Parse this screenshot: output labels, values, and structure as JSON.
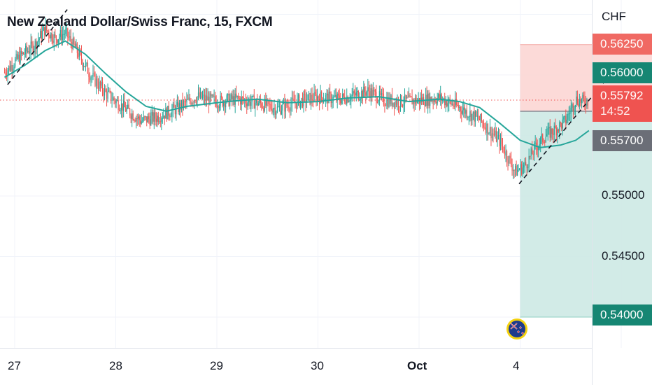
{
  "title": "New Zealand Dollar/Swiss Franc, 15, FXCM",
  "currency": "CHF",
  "colors": {
    "up": "#26a69a",
    "down": "#ef5350",
    "ma": "#26a69a",
    "stop_zone": "#fcd3d1",
    "target_zone": "#cde9e4",
    "last_price": "#ef5350",
    "entry_price": "#6b6e77",
    "target_price": "#1c8c7d"
  },
  "price_labels": {
    "stop": "0.56250",
    "current": "0.55792",
    "countdown": "14:52",
    "entry": "0.55700",
    "target": "0.54000",
    "level_0560": "0.56000"
  },
  "chart_data": {
    "type": "line",
    "title": "New Zealand Dollar/Swiss Franc, 15, FXCM",
    "ylabel": "CHF",
    "ylim": [
      0.5381,
      0.565
    ],
    "yticks": [
      "0.55000",
      "0.54500"
    ],
    "x_tick_labels": [
      "27",
      "28",
      "29",
      "30",
      "Oct",
      "4"
    ],
    "xlim_days": [
      26.9,
      34.55
    ],
    "grid": true,
    "position": {
      "type": "short",
      "entry": 0.557,
      "stop_loss": 0.5625,
      "take_profit": 0.54,
      "start_day": 32.0,
      "end_day": 33.55
    },
    "last_price": 0.55792,
    "trendlines": [
      {
        "from": [
          26.93,
          0.5592
        ],
        "to": [
          27.52,
          0.5654
        ]
      },
      {
        "from": [
          31.99,
          0.551
        ],
        "to": [
          32.83,
          0.5594
        ]
      }
    ],
    "price_path": [
      [
        26.9,
        0.5602
      ],
      [
        27.05,
        0.5615
      ],
      [
        27.2,
        0.5625
      ],
      [
        27.3,
        0.5638
      ],
      [
        27.4,
        0.563
      ],
      [
        27.5,
        0.5635
      ],
      [
        27.6,
        0.5622
      ],
      [
        27.75,
        0.56
      ],
      [
        27.9,
        0.5585
      ],
      [
        28.05,
        0.5575
      ],
      [
        28.25,
        0.5562
      ],
      [
        28.4,
        0.5565
      ],
      [
        28.6,
        0.5572
      ],
      [
        28.8,
        0.5582
      ],
      [
        29.0,
        0.5578
      ],
      [
        29.2,
        0.558
      ],
      [
        29.4,
        0.5577
      ],
      [
        29.6,
        0.5572
      ],
      [
        29.8,
        0.5578
      ],
      [
        30.0,
        0.5582
      ],
      [
        30.2,
        0.558
      ],
      [
        30.4,
        0.5584
      ],
      [
        30.5,
        0.5587
      ],
      [
        30.65,
        0.5579
      ],
      [
        30.8,
        0.5578
      ],
      [
        31.0,
        0.5579
      ],
      [
        31.2,
        0.5581
      ],
      [
        31.4,
        0.5573
      ],
      [
        31.6,
        0.5563
      ],
      [
        31.8,
        0.5545
      ],
      [
        31.95,
        0.552
      ],
      [
        32.05,
        0.5525
      ],
      [
        32.15,
        0.554
      ],
      [
        32.25,
        0.555
      ],
      [
        32.35,
        0.5555
      ],
      [
        32.45,
        0.5562
      ],
      [
        32.55,
        0.558
      ],
      [
        32.62,
        0.5578
      ],
      [
        32.68,
        0.5579
      ]
    ],
    "series": [
      {
        "name": "",
        "type": "moving_average",
        "values": [
          [
            26.9,
            0.5598
          ],
          [
            27.1,
            0.5608
          ],
          [
            27.3,
            0.562
          ],
          [
            27.5,
            0.5628
          ],
          [
            27.7,
            0.5617
          ],
          [
            27.9,
            0.5601
          ],
          [
            28.1,
            0.5586
          ],
          [
            28.3,
            0.5574
          ],
          [
            28.5,
            0.557
          ],
          [
            28.7,
            0.5574
          ],
          [
            28.9,
            0.5576
          ],
          [
            29.1,
            0.5578
          ],
          [
            29.4,
            0.558
          ],
          [
            29.7,
            0.5577
          ],
          [
            30.0,
            0.5578
          ],
          [
            30.3,
            0.5581
          ],
          [
            30.6,
            0.5582
          ],
          [
            30.9,
            0.5578
          ],
          [
            31.2,
            0.558
          ],
          [
            31.4,
            0.5578
          ],
          [
            31.6,
            0.5573
          ],
          [
            31.8,
            0.556
          ],
          [
            32.0,
            0.5546
          ],
          [
            32.2,
            0.554
          ],
          [
            32.4,
            0.5542
          ],
          [
            32.55,
            0.5546
          ],
          [
            32.68,
            0.5554
          ]
        ]
      }
    ]
  }
}
